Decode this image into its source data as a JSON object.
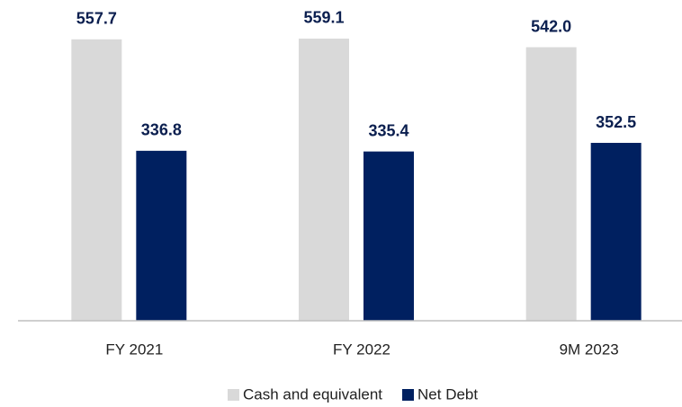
{
  "chart_data": {
    "type": "bar",
    "categories": [
      "FY 2021",
      "FY 2022",
      "9M 2023"
    ],
    "series": [
      {
        "name": "Cash and equivalent",
        "color": "#d9d9d9",
        "values": [
          557.7,
          559.1,
          542.0
        ],
        "value_labels": [
          "557.7",
          "559.1",
          "542.0"
        ]
      },
      {
        "name": "Net Debt",
        "color": "#002060",
        "values": [
          336.8,
          335.4,
          352.5
        ],
        "value_labels": [
          "336.8",
          "335.4",
          "352.5"
        ]
      }
    ],
    "ylim": [
      0,
      600
    ],
    "legend": "bottom"
  }
}
